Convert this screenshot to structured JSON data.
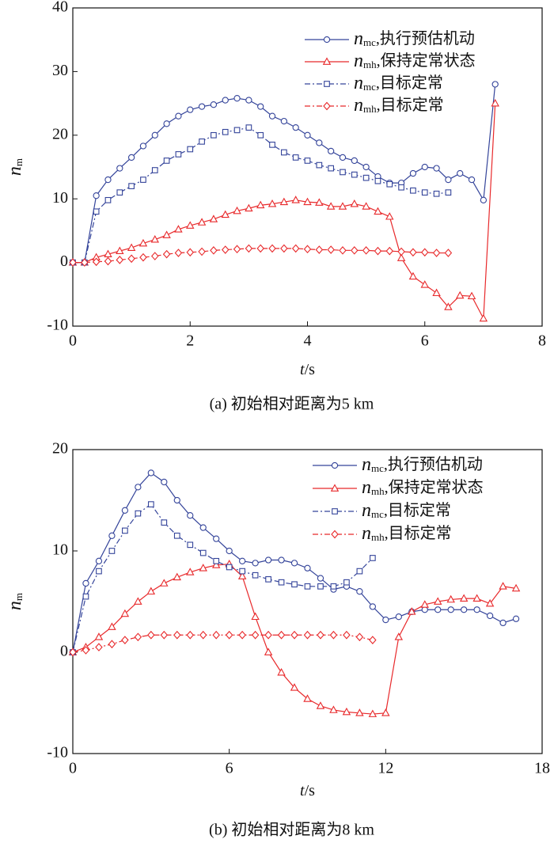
{
  "chart_data": [
    {
      "type": "line",
      "caption": "(a) 初始相对距离为5 km",
      "xlabel": "t/s",
      "ylabel": "nm",
      "xlim": [
        0,
        8
      ],
      "ylim": [
        -10,
        40
      ],
      "xticks": [
        0,
        2,
        4,
        6,
        8
      ],
      "yticks": [
        -10,
        0,
        10,
        20,
        30,
        40
      ],
      "series": [
        {
          "name": "nmc,执行预估机动",
          "color": "#34449a",
          "marker": "circle",
          "linestyle": "solid",
          "x": [
            0,
            0.2,
            0.4,
            0.6,
            0.8,
            1.0,
            1.2,
            1.4,
            1.6,
            1.8,
            2.0,
            2.2,
            2.4,
            2.6,
            2.8,
            3.0,
            3.2,
            3.4,
            3.6,
            3.8,
            4.0,
            4.2,
            4.4,
            4.6,
            4.8,
            5.0,
            5.2,
            5.4,
            5.6,
            5.8,
            6.0,
            6.2,
            6.4,
            6.6,
            6.8,
            7.0,
            7.2
          ],
          "values": [
            0,
            0,
            10.5,
            13,
            14.8,
            16.5,
            18.3,
            20,
            21.8,
            23,
            24,
            24.5,
            24.8,
            25.5,
            25.8,
            25.5,
            24.5,
            23,
            22.2,
            21.2,
            20,
            18.8,
            17.5,
            16.5,
            16,
            15,
            13.5,
            12.5,
            12.5,
            14,
            15,
            14.8,
            13,
            14,
            13,
            9.8,
            28
          ]
        },
        {
          "name": "nmh,保持定常状态",
          "color": "#e8292b",
          "marker": "triangle",
          "linestyle": "solid",
          "x": [
            0,
            0.2,
            0.4,
            0.6,
            0.8,
            1.0,
            1.2,
            1.4,
            1.6,
            1.8,
            2.0,
            2.2,
            2.4,
            2.6,
            2.8,
            3.0,
            3.2,
            3.4,
            3.6,
            3.8,
            4.0,
            4.2,
            4.4,
            4.6,
            4.8,
            5.0,
            5.2,
            5.4,
            5.6,
            5.8,
            6.0,
            6.2,
            6.4,
            6.6,
            6.8,
            7.0,
            7.2
          ],
          "values": [
            0,
            0,
            0.8,
            1.3,
            1.8,
            2.3,
            3,
            3.6,
            4.3,
            5.2,
            5.8,
            6.3,
            6.8,
            7.5,
            8.1,
            8.5,
            9,
            9.2,
            9.5,
            9.8,
            9.5,
            9.4,
            8.8,
            8.8,
            9.2,
            8.8,
            8,
            7.2,
            0.7,
            -2.2,
            -3.5,
            -4.8,
            -7,
            -5.2,
            -5.3,
            -8.8,
            25
          ]
        },
        {
          "name": "nmc,目标定常",
          "color": "#34449a",
          "marker": "square",
          "linestyle": "dashdot",
          "x": [
            0,
            0.2,
            0.4,
            0.6,
            0.8,
            1.0,
            1.2,
            1.4,
            1.6,
            1.8,
            2.0,
            2.2,
            2.4,
            2.6,
            2.8,
            3.0,
            3.2,
            3.4,
            3.6,
            3.8,
            4.0,
            4.2,
            4.4,
            4.6,
            4.8,
            5.0,
            5.2,
            5.4,
            5.6,
            5.8,
            6.0,
            6.2,
            6.4
          ],
          "values": [
            0,
            0,
            8,
            9.8,
            11,
            12,
            13,
            14.5,
            16,
            17,
            17.8,
            19,
            20,
            20.5,
            20.8,
            21.2,
            20,
            18.5,
            17.3,
            16.5,
            16,
            15.3,
            14.8,
            14.2,
            13.8,
            13.3,
            12.8,
            12.3,
            11.8,
            11.3,
            11,
            10.8,
            11
          ]
        },
        {
          "name": "nmh,目标定常",
          "color": "#e8292b",
          "marker": "diamond",
          "linestyle": "dashdot",
          "x": [
            0,
            0.2,
            0.4,
            0.6,
            0.8,
            1.0,
            1.2,
            1.4,
            1.6,
            1.8,
            2.0,
            2.2,
            2.4,
            2.6,
            2.8,
            3.0,
            3.2,
            3.4,
            3.6,
            3.8,
            4.0,
            4.2,
            4.4,
            4.6,
            4.8,
            5.0,
            5.2,
            5.4,
            5.6,
            5.8,
            6.0,
            6.2,
            6.4
          ],
          "values": [
            0,
            0,
            0.1,
            0.2,
            0.4,
            0.6,
            0.8,
            1,
            1.3,
            1.5,
            1.6,
            1.7,
            1.9,
            2,
            2.1,
            2.2,
            2.2,
            2.2,
            2.2,
            2.2,
            2.1,
            2,
            2,
            1.9,
            1.9,
            1.9,
            1.8,
            1.8,
            1.7,
            1.6,
            1.6,
            1.5,
            1.5
          ]
        }
      ]
    },
    {
      "type": "line",
      "caption": "(b) 初始相对距离为8 km",
      "xlabel": "t/s",
      "ylabel": "nm",
      "xlim": [
        0,
        18
      ],
      "ylim": [
        -10,
        20
      ],
      "xticks": [
        0,
        6,
        12,
        18
      ],
      "yticks": [
        -10,
        0,
        10,
        20
      ],
      "series": [
        {
          "name": "nmc,执行预估机动",
          "color": "#34449a",
          "marker": "circle",
          "linestyle": "solid",
          "x": [
            0,
            0.5,
            1,
            1.5,
            2,
            2.5,
            3,
            3.5,
            4,
            4.5,
            5,
            5.5,
            6,
            6.5,
            7,
            7.5,
            8,
            8.5,
            9,
            9.5,
            10,
            10.5,
            11,
            11.5,
            12,
            12.5,
            13,
            13.5,
            14,
            14.5,
            15,
            15.5,
            16,
            16.5,
            17
          ],
          "values": [
            0,
            6.8,
            9,
            11.5,
            14,
            16.3,
            17.7,
            16.8,
            15,
            13.5,
            12.3,
            11.2,
            10,
            9,
            8.8,
            9.1,
            9.1,
            8.8,
            8.3,
            7.3,
            6.2,
            6.5,
            6,
            4.5,
            3.2,
            3.5,
            4,
            4.2,
            4.2,
            4.2,
            4.2,
            4.2,
            3.6,
            2.9,
            3.3
          ]
        },
        {
          "name": "nmh,保持定常状态",
          "color": "#e8292b",
          "marker": "triangle",
          "linestyle": "solid",
          "x": [
            0,
            0.5,
            1,
            1.5,
            2,
            2.5,
            3,
            3.5,
            4,
            4.5,
            5,
            5.5,
            6,
            6.5,
            7,
            7.5,
            8,
            8.5,
            9,
            9.5,
            10,
            10.5,
            11,
            11.5,
            12,
            12.5,
            13,
            13.5,
            14,
            14.5,
            15,
            15.5,
            16,
            16.5,
            17
          ],
          "values": [
            0,
            0.5,
            1.5,
            2.5,
            3.8,
            5,
            6,
            6.8,
            7.4,
            7.9,
            8.3,
            8.6,
            8.7,
            7.5,
            3.5,
            0,
            -2,
            -3.5,
            -4.6,
            -5.3,
            -5.7,
            -5.9,
            -6,
            -6.1,
            -6,
            1.5,
            4,
            4.7,
            5,
            5.2,
            5.3,
            5.3,
            4.8,
            6.5,
            6.3
          ]
        },
        {
          "name": "nmc,目标定常",
          "color": "#34449a",
          "marker": "square",
          "linestyle": "dashdot",
          "x": [
            0,
            0.5,
            1,
            1.5,
            2,
            2.5,
            3,
            3.5,
            4,
            4.5,
            5,
            5.5,
            6,
            6.5,
            7,
            7.5,
            8,
            8.5,
            9,
            9.5,
            10,
            10.5,
            11,
            11.5
          ],
          "values": [
            0,
            5.5,
            8,
            10,
            12,
            13.7,
            14.6,
            12.8,
            11.5,
            10.6,
            9.8,
            9,
            8.4,
            8,
            7.6,
            7.2,
            6.9,
            6.7,
            6.5,
            6.5,
            6.5,
            6.9,
            8,
            9.3
          ]
        },
        {
          "name": "nmh,目标定常",
          "color": "#e8292b",
          "marker": "diamond",
          "linestyle": "dashdot",
          "x": [
            0,
            0.5,
            1,
            1.5,
            2,
            2.5,
            3,
            3.5,
            4,
            4.5,
            5,
            5.5,
            6,
            6.5,
            7,
            7.5,
            8,
            8.5,
            9,
            9.5,
            10,
            10.5,
            11,
            11.5
          ],
          "values": [
            0,
            0.2,
            0.5,
            0.8,
            1.2,
            1.5,
            1.7,
            1.7,
            1.7,
            1.7,
            1.7,
            1.7,
            1.7,
            1.7,
            1.7,
            1.7,
            1.7,
            1.7,
            1.7,
            1.7,
            1.7,
            1.7,
            1.5,
            1.2
          ]
        }
      ]
    }
  ]
}
